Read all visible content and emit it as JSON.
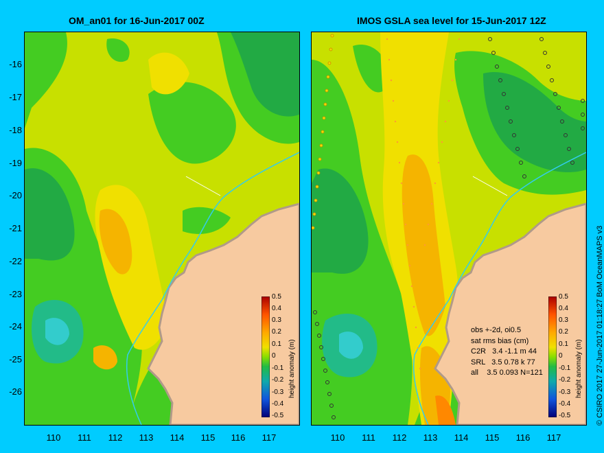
{
  "titles": {
    "left": "OM_an01 for 16-Jun-2017 00Z",
    "right": "IMOS GSLA sea level  for 15-Jun-2017 12Z"
  },
  "axes": {
    "y_ticks": [
      "-16",
      "-17",
      "-18",
      "-19",
      "-20",
      "-21",
      "-22",
      "-23",
      "-24",
      "-25",
      "-26"
    ],
    "x_ticks": [
      "110",
      "111",
      "112",
      "113",
      "114",
      "115",
      "116",
      "117"
    ]
  },
  "colorbar": {
    "title": "height anomaly (m)",
    "ticks": [
      "0.5",
      "0.4",
      "0.3",
      "0.2",
      "0.1",
      "0",
      "-0.1",
      "-0.2",
      "-0.3",
      "-0.4",
      "-0.5"
    ]
  },
  "stats": {
    "line1": "obs +-2d, oi0.5",
    "line2": "sat rms bias (cm)",
    "line3": "C2R   3.4 -1.1 m 44",
    "line4": "SRL   3.5 0.78 k 77",
    "line5": "all    3.5 0.093 N=121"
  },
  "credit": "© CSIRO 2017   27-Jun-2017 01:18:27 BoM OceanMAPS v3",
  "colors": {
    "background": "#00ccff",
    "land": "#f7caa0",
    "shore": "#b09a88",
    "isobath": "#33ccee",
    "green": "#44cc22",
    "yellow_green": "#c8e000",
    "yellow": "#f0e000",
    "orange": "#f5a800",
    "teal": "#22bb88"
  }
}
